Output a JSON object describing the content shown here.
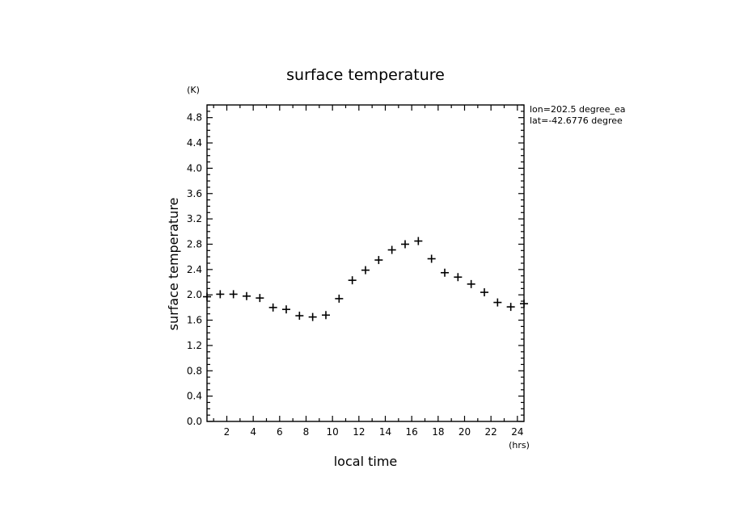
{
  "chart_data": {
    "type": "scatter",
    "title": "surface temperature",
    "xlabel": "local time",
    "ylabel": "surface temperature",
    "x_unit": "(hrs)",
    "y_unit": "(K)",
    "xlim": [
      0.5,
      24.5
    ],
    "ylim": [
      0.0,
      5.0
    ],
    "x_ticks": [
      2,
      4,
      6,
      8,
      10,
      12,
      14,
      16,
      18,
      20,
      22,
      24
    ],
    "y_ticks": [
      0.0,
      0.4,
      0.8,
      1.2,
      1.6,
      2.0,
      2.4,
      2.8,
      3.2,
      3.6,
      4.0,
      4.4,
      4.8
    ],
    "y_tick_labels": [
      "0.0",
      "0.4",
      "0.8",
      "1.2",
      "1.6",
      "2.0",
      "2.4",
      "2.8",
      "3.2",
      "3.6",
      "4.0",
      "4.4",
      "4.8"
    ],
    "grid": false,
    "marker": "plus",
    "annotations": [
      "lon=202.5 degree_ea",
      "lat=-42.6776 degree"
    ],
    "series": [
      {
        "x": [
          0.5,
          1.5,
          2.5,
          3.5,
          4.5,
          5.5,
          6.5,
          7.5,
          8.5,
          9.5,
          10.5,
          11.5,
          12.5,
          13.5,
          14.5,
          15.5,
          16.5,
          17.5,
          18.5,
          19.5,
          20.5,
          21.5,
          22.5,
          23.5,
          24.5
        ],
        "y": [
          1.97,
          2.01,
          2.01,
          1.98,
          1.95,
          1.8,
          1.77,
          1.67,
          1.65,
          1.68,
          1.94,
          2.23,
          2.39,
          2.55,
          2.71,
          2.8,
          2.85,
          2.57,
          2.35,
          2.28,
          2.17,
          2.04,
          1.88,
          1.81,
          1.86
        ]
      }
    ]
  }
}
